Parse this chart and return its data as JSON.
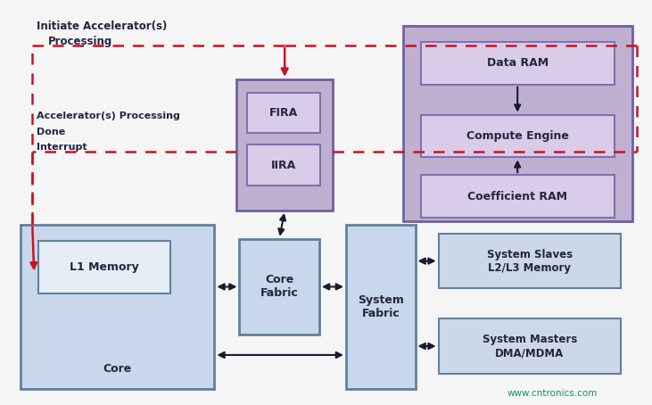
{
  "bg_color": "#f5f5f5",
  "blue_fill": "#c8d8ea",
  "blue_border": "#6080a0",
  "blue_light_fill": "#e2eaf4",
  "purple_outer_fill": "#c0b0d0",
  "purple_outer_border": "#7060a0",
  "purple_inner_fill": "#d8cce8",
  "purple_inner_border": "#8070b0",
  "sys_fill": "#ccd8e8",
  "sys_border": "#6080a0",
  "text_dark": "#252540",
  "red_dashed": "#cc1122",
  "arrow_dark": "#1a1a30",
  "watermark": "www.cntronics.com",
  "watermark_color": "#1a9060",
  "core_text": "#252540",
  "note1_line1": "Initiate Accelerator(s)",
  "note1_line2": "Processing",
  "note2_line1": "Accelerator(s) Processing",
  "note2_line2": "Done",
  "note2_line3": "Interrupt"
}
